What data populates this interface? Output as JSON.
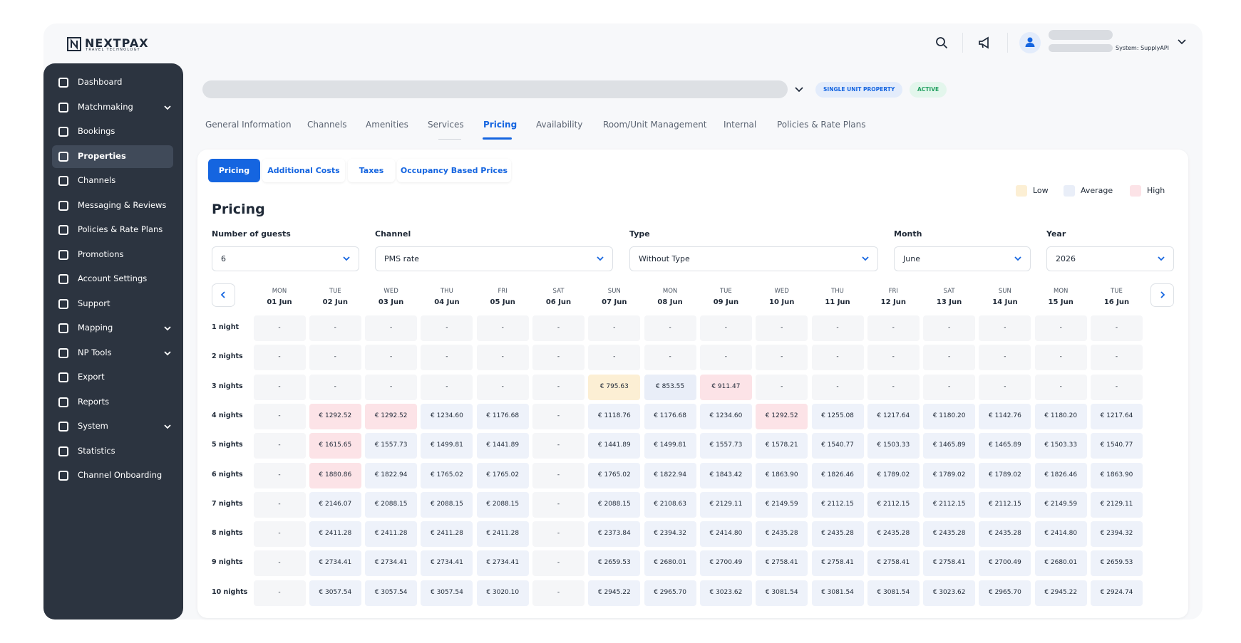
{
  "header": {
    "logo": "NEXTPAX",
    "logo_tagline": "TRAVEL TECHNOLOGY",
    "system": "System: SupplyAPI"
  },
  "sidebar": {
    "active": 3,
    "items": [
      {
        "label": "Dashboard",
        "has_submenu": false
      },
      {
        "label": "Matchmaking",
        "has_submenu": true
      },
      {
        "label": "Bookings",
        "has_submenu": false
      },
      {
        "label": "Properties",
        "has_submenu": false
      },
      {
        "label": "Channels",
        "has_submenu": false
      },
      {
        "label": "Messaging & Reviews",
        "has_submenu": false
      },
      {
        "label": "Policies & Rate Plans",
        "has_submenu": false
      },
      {
        "label": "Promotions",
        "has_submenu": false
      },
      {
        "label": "Account Settings",
        "has_submenu": false
      },
      {
        "label": "Support",
        "has_submenu": false
      },
      {
        "label": "Mapping",
        "has_submenu": true
      },
      {
        "label": "NP Tools",
        "has_submenu": true
      },
      {
        "label": "Export",
        "has_submenu": false
      },
      {
        "label": "Reports",
        "has_submenu": false
      },
      {
        "label": "System",
        "has_submenu": true
      },
      {
        "label": "Statistics",
        "has_submenu": false
      },
      {
        "label": "Channel Onboarding",
        "has_submenu": false
      }
    ]
  },
  "property": {
    "badges": [
      {
        "text": "SINGLE UNIT PROPERTY",
        "tone": "blue"
      },
      {
        "text": "ACTIVE",
        "tone": "green"
      }
    ]
  },
  "tabs": {
    "active": 4,
    "items": [
      "General Information",
      "Channels",
      "Amenities",
      "Services",
      "Pricing",
      "Availability",
      "Room/Unit Management",
      "Internal",
      "Policies & Rate Plans"
    ]
  },
  "subtabs": {
    "active": 0,
    "items": [
      "Pricing",
      "Additional Costs",
      "Taxes",
      "Occupancy Based Prices"
    ]
  },
  "legend": [
    {
      "label": "Low",
      "color": "#fcefd4"
    },
    {
      "label": "Average",
      "color": "#e9eef8"
    },
    {
      "label": "High",
      "color": "#fce3e7"
    }
  ],
  "heading": "Pricing",
  "filters": [
    {
      "label": "Number of guests",
      "value": "6"
    },
    {
      "label": "Channel",
      "value": "PMS rate"
    },
    {
      "label": "Type",
      "value": "Without Type"
    },
    {
      "label": "Month",
      "value": "June"
    },
    {
      "label": "Year",
      "value": "2026"
    }
  ],
  "table": {
    "columns": [
      {
        "day": "MON",
        "date": "01 Jun"
      },
      {
        "day": "TUE",
        "date": "02 Jun"
      },
      {
        "day": "WED",
        "date": "03 Jun"
      },
      {
        "day": "THU",
        "date": "04 Jun"
      },
      {
        "day": "FRI",
        "date": "05 Jun"
      },
      {
        "day": "SAT",
        "date": "06 Jun"
      },
      {
        "day": "SUN",
        "date": "07 Jun"
      },
      {
        "day": "MON",
        "date": "08 Jun"
      },
      {
        "day": "TUE",
        "date": "09 Jun"
      },
      {
        "day": "WED",
        "date": "10 Jun"
      },
      {
        "day": "THU",
        "date": "11 Jun"
      },
      {
        "day": "FRI",
        "date": "12 Jun"
      },
      {
        "day": "SAT",
        "date": "13 Jun"
      },
      {
        "day": "SUN",
        "date": "14 Jun"
      },
      {
        "day": "MON",
        "date": "15 Jun"
      },
      {
        "day": "TUE",
        "date": "16 Jun"
      }
    ],
    "rows": [
      {
        "label": "1 night",
        "cells": [
          "-",
          "-",
          "-",
          "-",
          "-",
          "-",
          "-",
          "-",
          "-",
          "-",
          "-",
          "-",
          "-",
          "-",
          "-",
          "-"
        ]
      },
      {
        "label": "2 nights",
        "cells": [
          "-",
          "-",
          "-",
          "-",
          "-",
          "-",
          "-",
          "-",
          "-",
          "-",
          "-",
          "-",
          "-",
          "-",
          "-",
          "-"
        ]
      },
      {
        "label": "3 nights",
        "cells": [
          "-",
          "-",
          "-",
          "-",
          "-",
          "-",
          {
            "text": "€ 795.63",
            "level": "Low"
          },
          {
            "text": "€ 853.55",
            "level": "Average"
          },
          {
            "text": "€ 911.47",
            "level": "High"
          },
          "-",
          "-",
          "-",
          "-",
          "-",
          "-",
          "-"
        ]
      },
      {
        "label": "4 nights",
        "cells": [
          "-",
          {
            "text": "€ 1292.52",
            "level": "High"
          },
          {
            "text": "€ 1292.52",
            "level": "High"
          },
          "€ 1234.60",
          "€ 1176.68",
          "-",
          "€ 1118.76",
          "€ 1176.68",
          "€ 1234.60",
          {
            "text": "€ 1292.52",
            "level": "High"
          },
          "€ 1255.08",
          "€ 1217.64",
          "€ 1180.20",
          "€ 1142.76",
          "€ 1180.20",
          "€ 1217.64"
        ]
      },
      {
        "label": "5 nights",
        "cells": [
          "-",
          {
            "text": "€ 1615.65",
            "level": "High"
          },
          "€ 1557.73",
          "€ 1499.81",
          "€ 1441.89",
          "-",
          "€ 1441.89",
          "€ 1499.81",
          "€ 1557.73",
          "€ 1578.21",
          "€ 1540.77",
          "€ 1503.33",
          "€ 1465.89",
          "€ 1465.89",
          "€ 1503.33",
          "€ 1540.77"
        ]
      },
      {
        "label": "6 nights",
        "cells": [
          "-",
          {
            "text": "€ 1880.86",
            "level": "High"
          },
          "€ 1822.94",
          "€ 1765.02",
          "€ 1765.02",
          "-",
          "€ 1765.02",
          "€ 1822.94",
          "€ 1843.42",
          "€ 1863.90",
          "€ 1826.46",
          "€ 1789.02",
          "€ 1789.02",
          "€ 1789.02",
          "€ 1826.46",
          "€ 1863.90"
        ]
      },
      {
        "label": "7 nights",
        "cells": [
          "-",
          "€ 2146.07",
          "€ 2088.15",
          "€ 2088.15",
          "€ 2088.15",
          "-",
          "€ 2088.15",
          "€ 2108.63",
          "€ 2129.11",
          "€ 2149.59",
          "€ 2112.15",
          "€ 2112.15",
          "€ 2112.15",
          "€ 2112.15",
          "€ 2149.59",
          "€ 2129.11"
        ]
      },
      {
        "label": "8 nights",
        "cells": [
          "-",
          "€ 2411.28",
          "€ 2411.28",
          "€ 2411.28",
          "€ 2411.28",
          "-",
          "€ 2373.84",
          "€ 2394.32",
          "€ 2414.80",
          "€ 2435.28",
          "€ 2435.28",
          "€ 2435.28",
          "€ 2435.28",
          "€ 2435.28",
          "€ 2414.80",
          "€ 2394.32"
        ]
      },
      {
        "label": "9 nights",
        "cells": [
          "-",
          "€ 2734.41",
          "€ 2734.41",
          "€ 2734.41",
          "€ 2734.41",
          "-",
          "€ 2659.53",
          "€ 2680.01",
          "€ 2700.49",
          "€ 2758.41",
          "€ 2758.41",
          "€ 2758.41",
          "€ 2758.41",
          "€ 2700.49",
          "€ 2680.01",
          "€ 2659.53"
        ]
      },
      {
        "label": "10 nights",
        "cells": [
          "-",
          "€ 3057.54",
          "€ 3057.54",
          "€ 3057.54",
          "€ 3020.10",
          "-",
          "€ 2945.22",
          "€ 2965.70",
          "€ 3023.62",
          "€ 3081.54",
          "€ 3081.54",
          "€ 3081.54",
          "€ 3023.62",
          "€ 2965.70",
          "€ 2945.22",
          "€ 2924.74"
        ]
      }
    ]
  }
}
